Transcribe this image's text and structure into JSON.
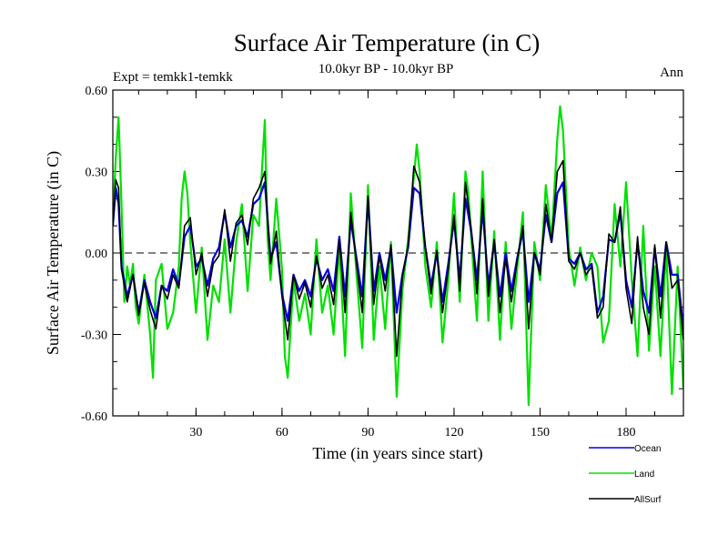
{
  "chart_data": {
    "type": "line",
    "title": "Surface Air Temperature (in C)",
    "left_label": "Expt = temkk1-temkk",
    "center_label": "10.0kyr BP - 10.0kyr BP",
    "right_label": "Ann",
    "xlabel": "Time (in years since start)",
    "ylabel": "Surface Air Temperature (in C)",
    "xlim": [
      1,
      200
    ],
    "ylim": [
      -0.6,
      0.6
    ],
    "xticks": [
      30,
      60,
      90,
      120,
      150,
      180
    ],
    "xtick_labels": [
      "30",
      "60",
      "90",
      "120",
      "150",
      "180"
    ],
    "yticks": [
      -0.6,
      -0.3,
      0.0,
      0.3,
      0.6
    ],
    "ytick_labels": [
      "-0.60",
      "-0.30",
      "0.00",
      "0.30",
      "0.60"
    ],
    "zero_line": "dashed",
    "legend_position": "bottom-right",
    "series": [
      {
        "name": "Land",
        "color": "#00e000",
        "x": [
          1,
          2,
          3,
          4,
          5,
          6,
          7,
          8,
          9,
          10,
          12,
          14,
          15,
          16,
          18,
          20,
          22,
          24,
          25,
          26,
          27,
          28,
          30,
          32,
          34,
          36,
          38,
          40,
          42,
          44,
          46,
          48,
          50,
          52,
          53,
          54,
          55,
          56,
          58,
          60,
          61,
          62,
          64,
          66,
          68,
          70,
          72,
          74,
          76,
          78,
          80,
          82,
          84,
          86,
          88,
          90,
          92,
          94,
          96,
          98,
          100,
          102,
          104,
          106,
          107,
          108,
          110,
          112,
          114,
          116,
          118,
          120,
          122,
          124,
          125,
          126,
          128,
          130,
          132,
          134,
          136,
          138,
          140,
          142,
          144,
          146,
          148,
          150,
          152,
          154,
          156,
          157,
          158,
          160,
          162,
          164,
          166,
          168,
          170,
          172,
          174,
          176,
          178,
          180,
          182,
          184,
          186,
          188,
          190,
          192,
          194,
          196,
          198,
          200
        ],
        "values": [
          0.12,
          0.35,
          0.5,
          0.18,
          -0.18,
          -0.05,
          -0.12,
          -0.04,
          -0.2,
          -0.26,
          -0.08,
          -0.3,
          -0.46,
          -0.1,
          -0.04,
          -0.28,
          -0.22,
          -0.05,
          0.2,
          0.3,
          0.22,
          0.04,
          -0.22,
          0.02,
          -0.32,
          -0.12,
          -0.18,
          0.05,
          -0.22,
          0.04,
          0.18,
          -0.14,
          0.14,
          0.1,
          0.3,
          0.49,
          0.05,
          -0.1,
          0.2,
          -0.06,
          -0.38,
          -0.46,
          -0.1,
          -0.25,
          -0.15,
          -0.3,
          0.05,
          -0.22,
          -0.12,
          -0.3,
          0.02,
          -0.38,
          0.22,
          -0.08,
          -0.35,
          0.25,
          -0.32,
          -0.05,
          -0.28,
          0.04,
          -0.53,
          -0.14,
          0.05,
          0.28,
          0.4,
          0.3,
          -0.05,
          -0.2,
          0.04,
          -0.33,
          -0.1,
          0.22,
          -0.18,
          0.3,
          0.22,
          0.06,
          -0.25,
          0.3,
          -0.25,
          0.08,
          -0.32,
          0.04,
          -0.28,
          -0.06,
          0.15,
          -0.56,
          0.04,
          -0.1,
          0.25,
          0.05,
          0.42,
          0.54,
          0.45,
          0.02,
          -0.12,
          0.02,
          -0.1,
          0.0,
          -0.05,
          -0.33,
          -0.25,
          0.18,
          -0.05,
          0.26,
          -0.1,
          -0.38,
          0.1,
          -0.36,
          -0.05,
          -0.38,
          0.02,
          -0.52,
          -0.05,
          -0.5
        ]
      },
      {
        "name": "Ocean",
        "color": "#0000e0",
        "x": [
          1,
          2,
          3,
          4,
          6,
          8,
          10,
          12,
          14,
          16,
          18,
          20,
          22,
          24,
          26,
          28,
          30,
          32,
          34,
          36,
          38,
          40,
          42,
          44,
          46,
          48,
          50,
          52,
          54,
          56,
          58,
          60,
          62,
          64,
          66,
          68,
          70,
          72,
          74,
          76,
          78,
          80,
          82,
          84,
          86,
          88,
          90,
          92,
          94,
          96,
          98,
          100,
          102,
          104,
          106,
          108,
          110,
          112,
          114,
          116,
          118,
          120,
          122,
          124,
          126,
          128,
          130,
          132,
          134,
          136,
          138,
          140,
          142,
          144,
          146,
          148,
          150,
          152,
          154,
          156,
          158,
          160,
          162,
          164,
          166,
          168,
          170,
          172,
          174,
          176,
          178,
          180,
          182,
          184,
          186,
          188,
          190,
          192,
          194,
          196,
          198,
          200
        ],
        "values": [
          0.1,
          0.24,
          0.18,
          -0.05,
          -0.16,
          -0.08,
          -0.22,
          -0.1,
          -0.18,
          -0.24,
          -0.12,
          -0.14,
          -0.06,
          -0.12,
          0.06,
          0.1,
          -0.05,
          -0.02,
          -0.12,
          -0.02,
          0.02,
          0.15,
          0.02,
          0.1,
          0.12,
          0.06,
          0.18,
          0.2,
          0.26,
          -0.02,
          0.04,
          -0.15,
          -0.25,
          -0.08,
          -0.14,
          -0.1,
          -0.16,
          -0.02,
          -0.1,
          -0.06,
          -0.14,
          0.06,
          -0.16,
          0.12,
          -0.02,
          -0.16,
          0.2,
          -0.14,
          0.0,
          -0.1,
          0.02,
          -0.22,
          -0.08,
          0.02,
          0.24,
          0.22,
          0.02,
          -0.12,
          0.0,
          -0.18,
          -0.04,
          0.12,
          -0.1,
          0.2,
          0.08,
          -0.1,
          0.16,
          -0.12,
          0.04,
          -0.16,
          0.0,
          -0.14,
          -0.02,
          0.08,
          -0.18,
          0.0,
          -0.06,
          0.14,
          0.04,
          0.22,
          0.26,
          -0.02,
          -0.04,
          0.0,
          -0.06,
          -0.04,
          -0.22,
          -0.16,
          0.05,
          0.04,
          0.15,
          -0.1,
          -0.2,
          0.04,
          -0.14,
          -0.22,
          0.02,
          -0.16,
          0.04,
          -0.08,
          -0.08,
          -0.28
        ]
      },
      {
        "name": "AllSurf",
        "color": "#000000",
        "x": [
          1,
          2,
          3,
          4,
          6,
          8,
          10,
          12,
          14,
          16,
          18,
          20,
          22,
          24,
          26,
          28,
          30,
          32,
          34,
          36,
          38,
          40,
          42,
          44,
          46,
          48,
          50,
          52,
          54,
          56,
          58,
          60,
          62,
          64,
          66,
          68,
          70,
          72,
          74,
          76,
          78,
          80,
          82,
          84,
          86,
          88,
          90,
          92,
          94,
          96,
          98,
          100,
          102,
          104,
          106,
          108,
          110,
          112,
          114,
          116,
          118,
          120,
          122,
          124,
          126,
          128,
          130,
          132,
          134,
          136,
          138,
          140,
          142,
          144,
          146,
          148,
          150,
          152,
          154,
          156,
          158,
          160,
          162,
          164,
          166,
          168,
          170,
          172,
          174,
          176,
          178,
          180,
          182,
          184,
          186,
          188,
          190,
          192,
          194,
          196,
          198,
          200
        ],
        "values": [
          0.1,
          0.27,
          0.24,
          -0.06,
          -0.18,
          -0.08,
          -0.23,
          -0.11,
          -0.21,
          -0.28,
          -0.12,
          -0.17,
          -0.08,
          -0.13,
          0.1,
          0.13,
          -0.08,
          0.0,
          -0.16,
          -0.04,
          -0.01,
          0.16,
          -0.03,
          0.11,
          0.14,
          0.03,
          0.2,
          0.24,
          0.3,
          -0.04,
          0.08,
          -0.16,
          -0.32,
          -0.08,
          -0.17,
          -0.11,
          -0.2,
          -0.01,
          -0.13,
          -0.08,
          -0.19,
          0.05,
          -0.22,
          0.15,
          -0.04,
          -0.22,
          0.21,
          -0.19,
          -0.01,
          -0.14,
          0.03,
          -0.38,
          -0.09,
          0.03,
          0.32,
          0.26,
          0.02,
          -0.15,
          0.01,
          -0.22,
          -0.06,
          0.14,
          -0.14,
          0.26,
          0.09,
          -0.15,
          0.2,
          -0.16,
          0.05,
          -0.22,
          -0.02,
          -0.18,
          -0.03,
          0.1,
          -0.28,
          0.0,
          -0.08,
          0.18,
          0.04,
          0.3,
          0.34,
          -0.03,
          -0.06,
          0.0,
          -0.08,
          -0.05,
          -0.24,
          -0.2,
          0.07,
          0.04,
          0.17,
          -0.13,
          -0.26,
          0.06,
          -0.2,
          -0.3,
          0.03,
          -0.24,
          0.04,
          -0.13,
          -0.1,
          -0.32
        ]
      }
    ]
  }
}
